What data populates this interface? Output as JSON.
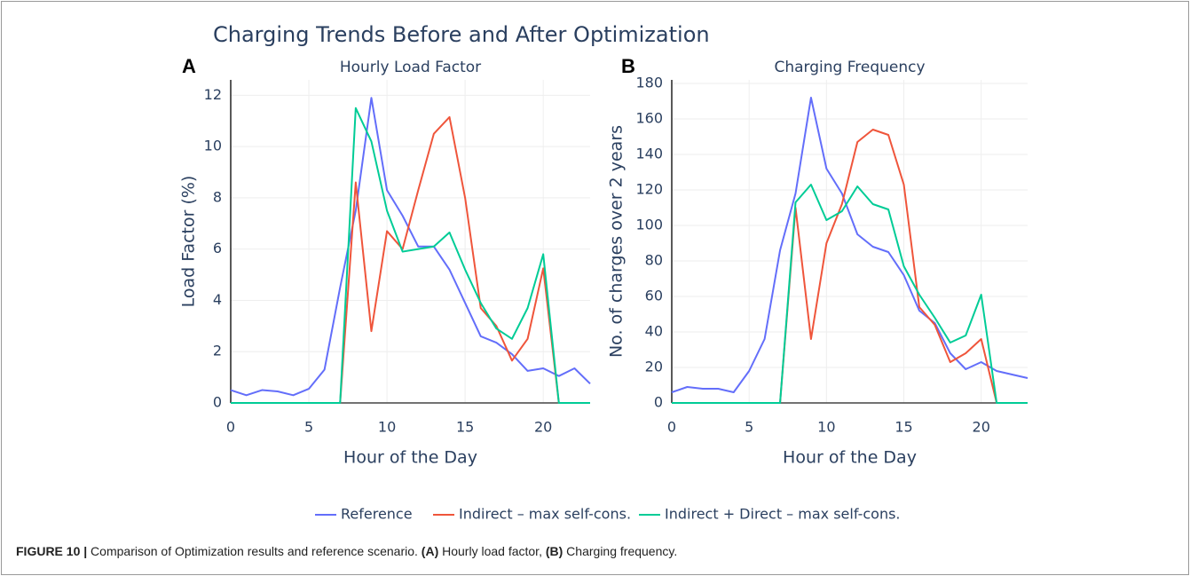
{
  "title": "Charging Trends Before and After Optimization",
  "caption": [
    {
      "text": "FIGURE 10 |",
      "bold": true
    },
    {
      "text": " Comparison of Optimization results and reference scenario. "
    },
    {
      "text": "(A)",
      "bold": true
    },
    {
      "text": " Hourly load factor, "
    },
    {
      "text": "(B)",
      "bold": true
    },
    {
      "text": " Charging frequency."
    }
  ],
  "chart_data": [
    {
      "type": "line",
      "panel": "A",
      "title": "Hourly Load Factor",
      "xlabel": "Hour of the Day",
      "ylabel": "Load Factor (%)",
      "x": [
        0,
        1,
        2,
        3,
        4,
        5,
        6,
        7,
        8,
        9,
        10,
        11,
        12,
        13,
        14,
        15,
        16,
        17,
        18,
        19,
        20,
        21,
        22,
        23
      ],
      "xlim": [
        0,
        23
      ],
      "xticks": [
        0,
        5,
        10,
        15,
        20
      ],
      "ylim": [
        0,
        12.6
      ],
      "yticks": [
        0,
        2,
        4,
        6,
        8,
        10,
        12
      ],
      "grid": true,
      "series": [
        {
          "name": "Reference",
          "color": "#636efa",
          "values": [
            0.5,
            0.3,
            0.5,
            0.45,
            0.3,
            0.55,
            1.3,
            4.5,
            7.5,
            11.9,
            8.3,
            7.3,
            6.1,
            6.1,
            5.2,
            3.9,
            2.6,
            2.35,
            1.9,
            1.25,
            1.35,
            1.05,
            1.35,
            0.75
          ]
        },
        {
          "name": "Indirect – max self-cons.",
          "color": "#ef553b",
          "values": [
            0,
            0,
            0,
            0,
            0,
            0,
            0,
            0,
            8.6,
            2.8,
            6.7,
            6.0,
            8.3,
            10.5,
            11.15,
            8.0,
            3.7,
            3.0,
            1.65,
            2.5,
            5.25,
            0,
            0,
            0
          ]
        },
        {
          "name": "Indirect + Direct – max self-cons.",
          "color": "#00cc96",
          "values": [
            0,
            0,
            0,
            0,
            0,
            0,
            0,
            0,
            11.5,
            10.2,
            7.5,
            5.9,
            6.0,
            6.1,
            6.65,
            5.2,
            3.9,
            2.9,
            2.5,
            3.7,
            5.8,
            0,
            0,
            0
          ]
        }
      ]
    },
    {
      "type": "line",
      "panel": "B",
      "title": "Charging Frequency",
      "xlabel": "Hour of the Day",
      "ylabel": "No. of charges over 2 years",
      "x": [
        0,
        1,
        2,
        3,
        4,
        5,
        6,
        7,
        8,
        9,
        10,
        11,
        12,
        13,
        14,
        15,
        16,
        17,
        18,
        19,
        20,
        21,
        22,
        23
      ],
      "xlim": [
        0,
        23
      ],
      "xticks": [
        0,
        5,
        10,
        15,
        20
      ],
      "ylim": [
        0,
        182
      ],
      "yticks": [
        0,
        20,
        40,
        60,
        80,
        100,
        120,
        140,
        160,
        180
      ],
      "grid": true,
      "series": [
        {
          "color": "#636efa",
          "values": [
            6,
            9,
            8,
            8,
            6,
            18,
            36,
            86,
            118,
            172,
            132,
            118,
            95,
            88,
            85,
            72,
            52,
            45,
            28,
            19,
            23,
            18,
            16,
            14
          ]
        },
        {
          "color": "#ef553b",
          "values": [
            0,
            0,
            0,
            0,
            0,
            0,
            0,
            0,
            110,
            36,
            90,
            112,
            147,
            154,
            151,
            123,
            54,
            44,
            23,
            28,
            36,
            0,
            0,
            0
          ]
        },
        {
          "color": "#00cc96",
          "values": [
            0,
            0,
            0,
            0,
            0,
            0,
            0,
            0,
            113,
            123,
            103,
            108,
            122,
            112,
            109,
            77,
            61,
            48,
            34,
            38,
            61,
            0,
            0,
            0
          ]
        }
      ]
    }
  ]
}
